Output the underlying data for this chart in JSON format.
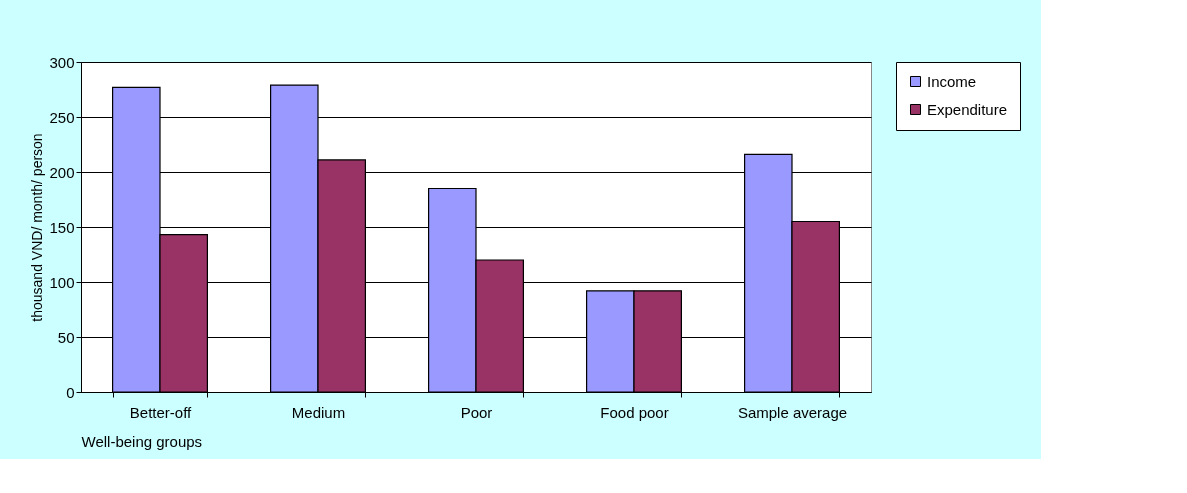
{
  "chart_data": {
    "type": "bar",
    "xlabel": "Well-being groups",
    "ylabel": "thousand VND/ month/ person",
    "categories": [
      "Better-off",
      "Medium",
      "Poor",
      "Food poor",
      "Sample average"
    ],
    "series": [
      {
        "name": "Income",
        "color": "#9999ff",
        "values": [
          277,
          279,
          185,
          92,
          216
        ]
      },
      {
        "name": "Expenditure",
        "color": "#993366",
        "values": [
          143,
          211,
          120,
          92,
          155
        ]
      }
    ],
    "ylim": [
      0,
      300
    ],
    "yticks": [
      0,
      50,
      100,
      150,
      200,
      250,
      300
    ],
    "grid": "y",
    "legend": "right"
  }
}
